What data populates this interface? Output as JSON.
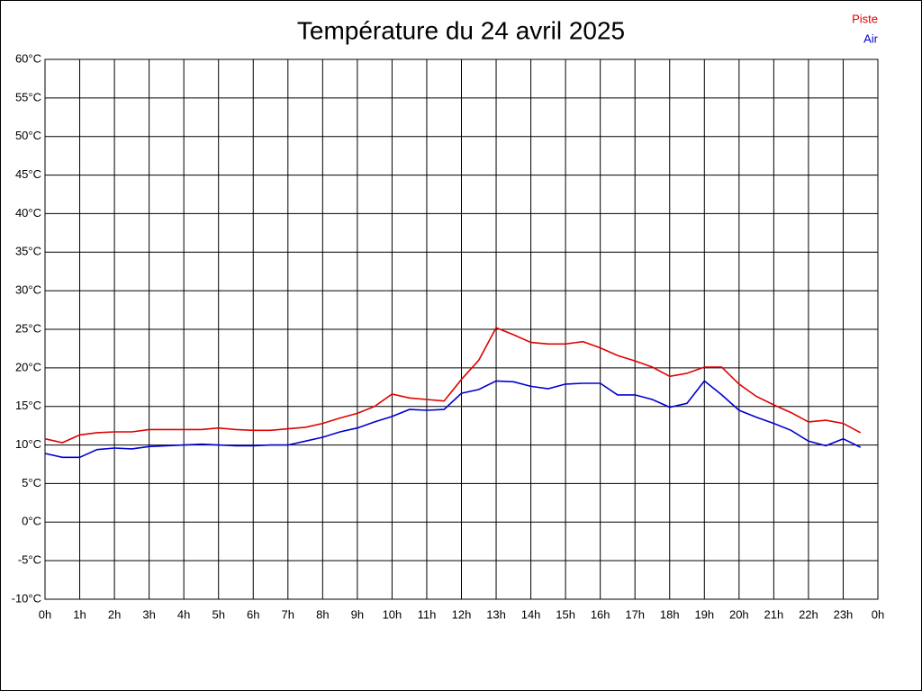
{
  "chart_data": {
    "type": "line",
    "title": "Température du 24 avril 2025",
    "x": [
      0,
      0.5,
      1,
      1.5,
      2,
      2.5,
      3,
      3.5,
      4,
      4.5,
      5,
      5.5,
      6,
      6.5,
      7,
      7.5,
      8,
      8.5,
      9,
      9.5,
      10,
      10.5,
      11,
      11.5,
      12,
      12.5,
      13,
      13.5,
      14,
      14.5,
      15,
      15.5,
      16,
      16.5,
      17,
      17.5,
      18,
      18.5,
      19,
      19.5,
      20,
      20.5,
      21,
      21.5,
      22,
      22.5,
      23,
      23.5
    ],
    "series": [
      {
        "name": "Piste",
        "color": "#e00000",
        "values": [
          10.8,
          10.3,
          11.3,
          11.6,
          11.7,
          11.7,
          12.0,
          12.0,
          12.0,
          12.0,
          12.2,
          12.0,
          11.9,
          11.9,
          12.1,
          12.3,
          12.8,
          13.5,
          14.1,
          15.0,
          16.6,
          16.1,
          15.9,
          15.7,
          18.5,
          21.0,
          25.2,
          24.3,
          23.3,
          23.1,
          23.1,
          23.4,
          22.6,
          21.6,
          20.9,
          20.1,
          18.9,
          19.3,
          20.1,
          20.1,
          17.9,
          16.3,
          15.2,
          14.2,
          13.0,
          13.2,
          12.8,
          11.6
        ]
      },
      {
        "name": "Air",
        "color": "#0000d0",
        "values": [
          8.9,
          8.4,
          8.4,
          9.4,
          9.6,
          9.5,
          9.8,
          9.9,
          10.0,
          10.1,
          10.0,
          9.9,
          9.9,
          10.0,
          10.0,
          10.5,
          11.0,
          11.7,
          12.2,
          13.0,
          13.7,
          14.6,
          14.5,
          14.6,
          16.7,
          17.2,
          18.3,
          18.2,
          17.6,
          17.3,
          17.9,
          18.0,
          18.0,
          16.5,
          16.5,
          15.9,
          14.9,
          15.4,
          18.3,
          16.5,
          14.5,
          13.6,
          12.8,
          11.9,
          10.5,
          9.9,
          10.8,
          9.7
        ]
      }
    ],
    "xlim": [
      0,
      24
    ],
    "xticks": [
      {
        "value": 0,
        "label": "0h"
      },
      {
        "value": 1,
        "label": "1h"
      },
      {
        "value": 2,
        "label": "2h"
      },
      {
        "value": 3,
        "label": "3h"
      },
      {
        "value": 4,
        "label": "4h"
      },
      {
        "value": 5,
        "label": "5h"
      },
      {
        "value": 6,
        "label": "6h"
      },
      {
        "value": 7,
        "label": "7h"
      },
      {
        "value": 8,
        "label": "8h"
      },
      {
        "value": 9,
        "label": "9h"
      },
      {
        "value": 10,
        "label": "10h"
      },
      {
        "value": 11,
        "label": "11h"
      },
      {
        "value": 12,
        "label": "12h"
      },
      {
        "value": 13,
        "label": "13h"
      },
      {
        "value": 14,
        "label": "14h"
      },
      {
        "value": 15,
        "label": "15h"
      },
      {
        "value": 16,
        "label": "16h"
      },
      {
        "value": 17,
        "label": "17h"
      },
      {
        "value": 18,
        "label": "18h"
      },
      {
        "value": 19,
        "label": "19h"
      },
      {
        "value": 20,
        "label": "20h"
      },
      {
        "value": 21,
        "label": "21h"
      },
      {
        "value": 22,
        "label": "22h"
      },
      {
        "value": 23,
        "label": "23h"
      },
      {
        "value": 24,
        "label": "0h"
      }
    ],
    "ylim": [
      -10,
      60
    ],
    "yticks": [
      {
        "value": -10,
        "label": "-10°C"
      },
      {
        "value": -5,
        "label": "-5°C"
      },
      {
        "value": 0,
        "label": "0°C"
      },
      {
        "value": 5,
        "label": "5°C"
      },
      {
        "value": 10,
        "label": "10°C"
      },
      {
        "value": 15,
        "label": "15°C"
      },
      {
        "value": 20,
        "label": "20°C"
      },
      {
        "value": 25,
        "label": "25°C"
      },
      {
        "value": 30,
        "label": "30°C"
      },
      {
        "value": 35,
        "label": "35°C"
      },
      {
        "value": 40,
        "label": "40°C"
      },
      {
        "value": 45,
        "label": "45°C"
      },
      {
        "value": 50,
        "label": "50°C"
      },
      {
        "value": 55,
        "label": "55°C"
      },
      {
        "value": 60,
        "label": "60°C"
      }
    ],
    "grid": true,
    "legend": "top-right"
  }
}
